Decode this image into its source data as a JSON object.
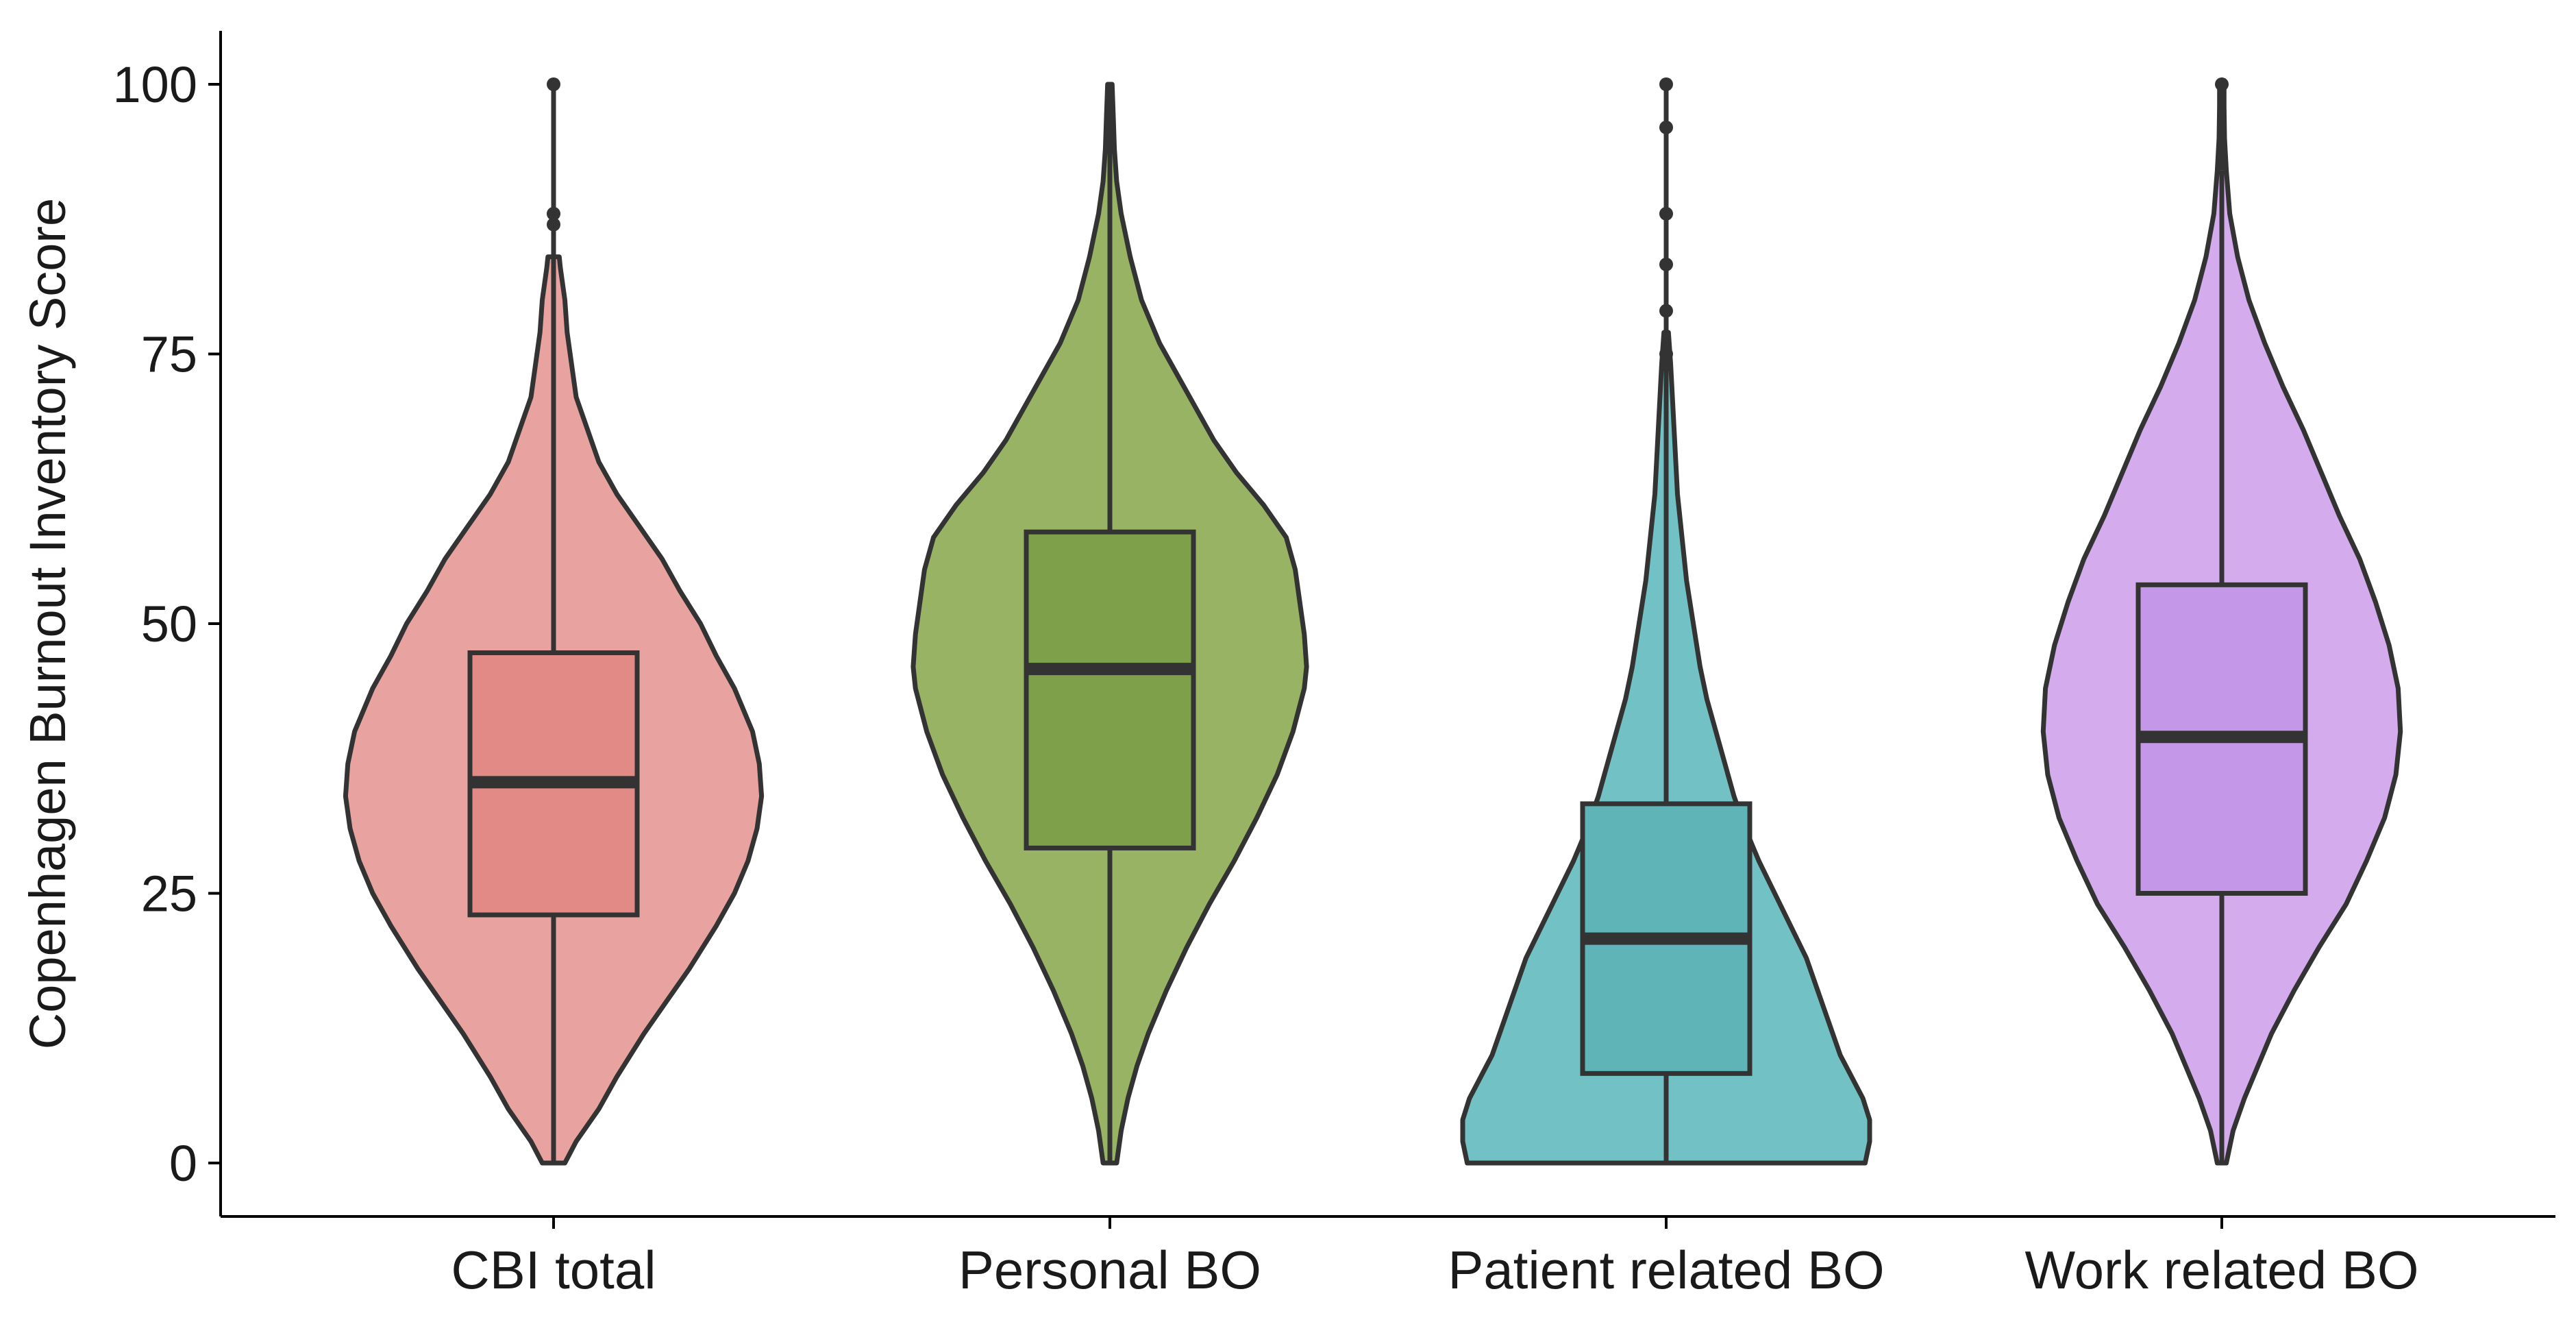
{
  "chart_data": {
    "type": "violin",
    "title": "",
    "xlabel": "",
    "ylabel": "Copenhagen Burnout Inventory Score",
    "ylim": [
      -5,
      105
    ],
    "yticks": [
      0,
      25,
      50,
      75,
      100
    ],
    "ytick_labels": [
      "0",
      "25",
      "50",
      "75",
      "100"
    ],
    "grid": false,
    "legend": "none",
    "categories": [
      "CBI total",
      "Personal BO",
      "Patient related BO",
      "Work related BO"
    ],
    "series": [
      {
        "fill": "#E8A3A0",
        "box_fill": "#E28A85",
        "min": 0,
        "q1": 23,
        "median": 35.3,
        "q3": 47.3,
        "max": 84,
        "outliers": [
          87,
          88,
          100
        ],
        "density": [
          [
            0,
            0.05
          ],
          [
            2,
            0.1
          ],
          [
            5,
            0.2
          ],
          [
            8,
            0.28
          ],
          [
            12,
            0.4
          ],
          [
            15,
            0.5
          ],
          [
            18,
            0.6
          ],
          [
            22,
            0.72
          ],
          [
            25,
            0.8
          ],
          [
            28,
            0.86
          ],
          [
            31,
            0.9
          ],
          [
            34,
            0.92
          ],
          [
            37,
            0.91
          ],
          [
            40,
            0.88
          ],
          [
            44,
            0.8
          ],
          [
            47,
            0.72
          ],
          [
            50,
            0.65
          ],
          [
            53,
            0.56
          ],
          [
            56,
            0.48
          ],
          [
            59,
            0.38
          ],
          [
            62,
            0.28
          ],
          [
            65,
            0.2
          ],
          [
            68,
            0.15
          ],
          [
            71,
            0.1
          ],
          [
            74,
            0.08
          ],
          [
            77,
            0.06
          ],
          [
            80,
            0.05
          ],
          [
            83,
            0.03
          ],
          [
            84,
            0.025
          ]
        ]
      },
      {
        "fill": "#97B363",
        "box_fill": "#7EA04A",
        "min": 0,
        "q1": 29.2,
        "median": 45.8,
        "q3": 58.5,
        "max": 100,
        "outliers": [],
        "density": [
          [
            0,
            0.03
          ],
          [
            3,
            0.05
          ],
          [
            6,
            0.08
          ],
          [
            9,
            0.12
          ],
          [
            12,
            0.17
          ],
          [
            16,
            0.25
          ],
          [
            20,
            0.34
          ],
          [
            24,
            0.44
          ],
          [
            28,
            0.55
          ],
          [
            32,
            0.65
          ],
          [
            36,
            0.74
          ],
          [
            40,
            0.81
          ],
          [
            44,
            0.86
          ],
          [
            46,
            0.87
          ],
          [
            49,
            0.86
          ],
          [
            52,
            0.84
          ],
          [
            55,
            0.82
          ],
          [
            58,
            0.78
          ],
          [
            61,
            0.68
          ],
          [
            64,
            0.56
          ],
          [
            67,
            0.46
          ],
          [
            70,
            0.38
          ],
          [
            73,
            0.3
          ],
          [
            76,
            0.22
          ],
          [
            80,
            0.14
          ],
          [
            84,
            0.09
          ],
          [
            88,
            0.05
          ],
          [
            91,
            0.03
          ],
          [
            94,
            0.02
          ],
          [
            97,
            0.015
          ],
          [
            100,
            0.01
          ]
        ]
      },
      {
        "fill": "#72C2C5",
        "box_fill": "#5FB4B8",
        "min": 0,
        "q1": 8.3,
        "median": 20.8,
        "q3": 33.3,
        "max": 70.8,
        "outliers": [
          75,
          79,
          83.3,
          88,
          96,
          100
        ],
        "density": [
          [
            0,
            0.88
          ],
          [
            2,
            0.9
          ],
          [
            4,
            0.9
          ],
          [
            6,
            0.87
          ],
          [
            8,
            0.82
          ],
          [
            10,
            0.77
          ],
          [
            13,
            0.72
          ],
          [
            16,
            0.67
          ],
          [
            19,
            0.62
          ],
          [
            22,
            0.55
          ],
          [
            25,
            0.48
          ],
          [
            28,
            0.41
          ],
          [
            31,
            0.35
          ],
          [
            34,
            0.3
          ],
          [
            37,
            0.26
          ],
          [
            40,
            0.22
          ],
          [
            43,
            0.18
          ],
          [
            46,
            0.15
          ],
          [
            50,
            0.12
          ],
          [
            54,
            0.09
          ],
          [
            58,
            0.07
          ],
          [
            62,
            0.05
          ],
          [
            66,
            0.04
          ],
          [
            70,
            0.03
          ],
          [
            74,
            0.02
          ],
          [
            77,
            0.01
          ]
        ]
      },
      {
        "fill": "#D4ABEC",
        "box_fill": "#C597E8",
        "min": 0,
        "q1": 25,
        "median": 39.5,
        "q3": 53.6,
        "max": 92,
        "outliers": [
          100
        ],
        "density": [
          [
            0,
            0.02
          ],
          [
            3,
            0.05
          ],
          [
            6,
            0.1
          ],
          [
            9,
            0.16
          ],
          [
            12,
            0.22
          ],
          [
            16,
            0.32
          ],
          [
            20,
            0.43
          ],
          [
            24,
            0.55
          ],
          [
            28,
            0.64
          ],
          [
            32,
            0.72
          ],
          [
            36,
            0.77
          ],
          [
            40,
            0.79
          ],
          [
            44,
            0.78
          ],
          [
            48,
            0.74
          ],
          [
            52,
            0.68
          ],
          [
            56,
            0.61
          ],
          [
            60,
            0.52
          ],
          [
            64,
            0.44
          ],
          [
            68,
            0.36
          ],
          [
            72,
            0.27
          ],
          [
            76,
            0.19
          ],
          [
            80,
            0.12
          ],
          [
            84,
            0.07
          ],
          [
            88,
            0.035
          ],
          [
            92,
            0.02
          ],
          [
            95,
            0.012
          ],
          [
            98,
            0.01
          ],
          [
            100,
            0.01
          ]
        ]
      }
    ]
  }
}
